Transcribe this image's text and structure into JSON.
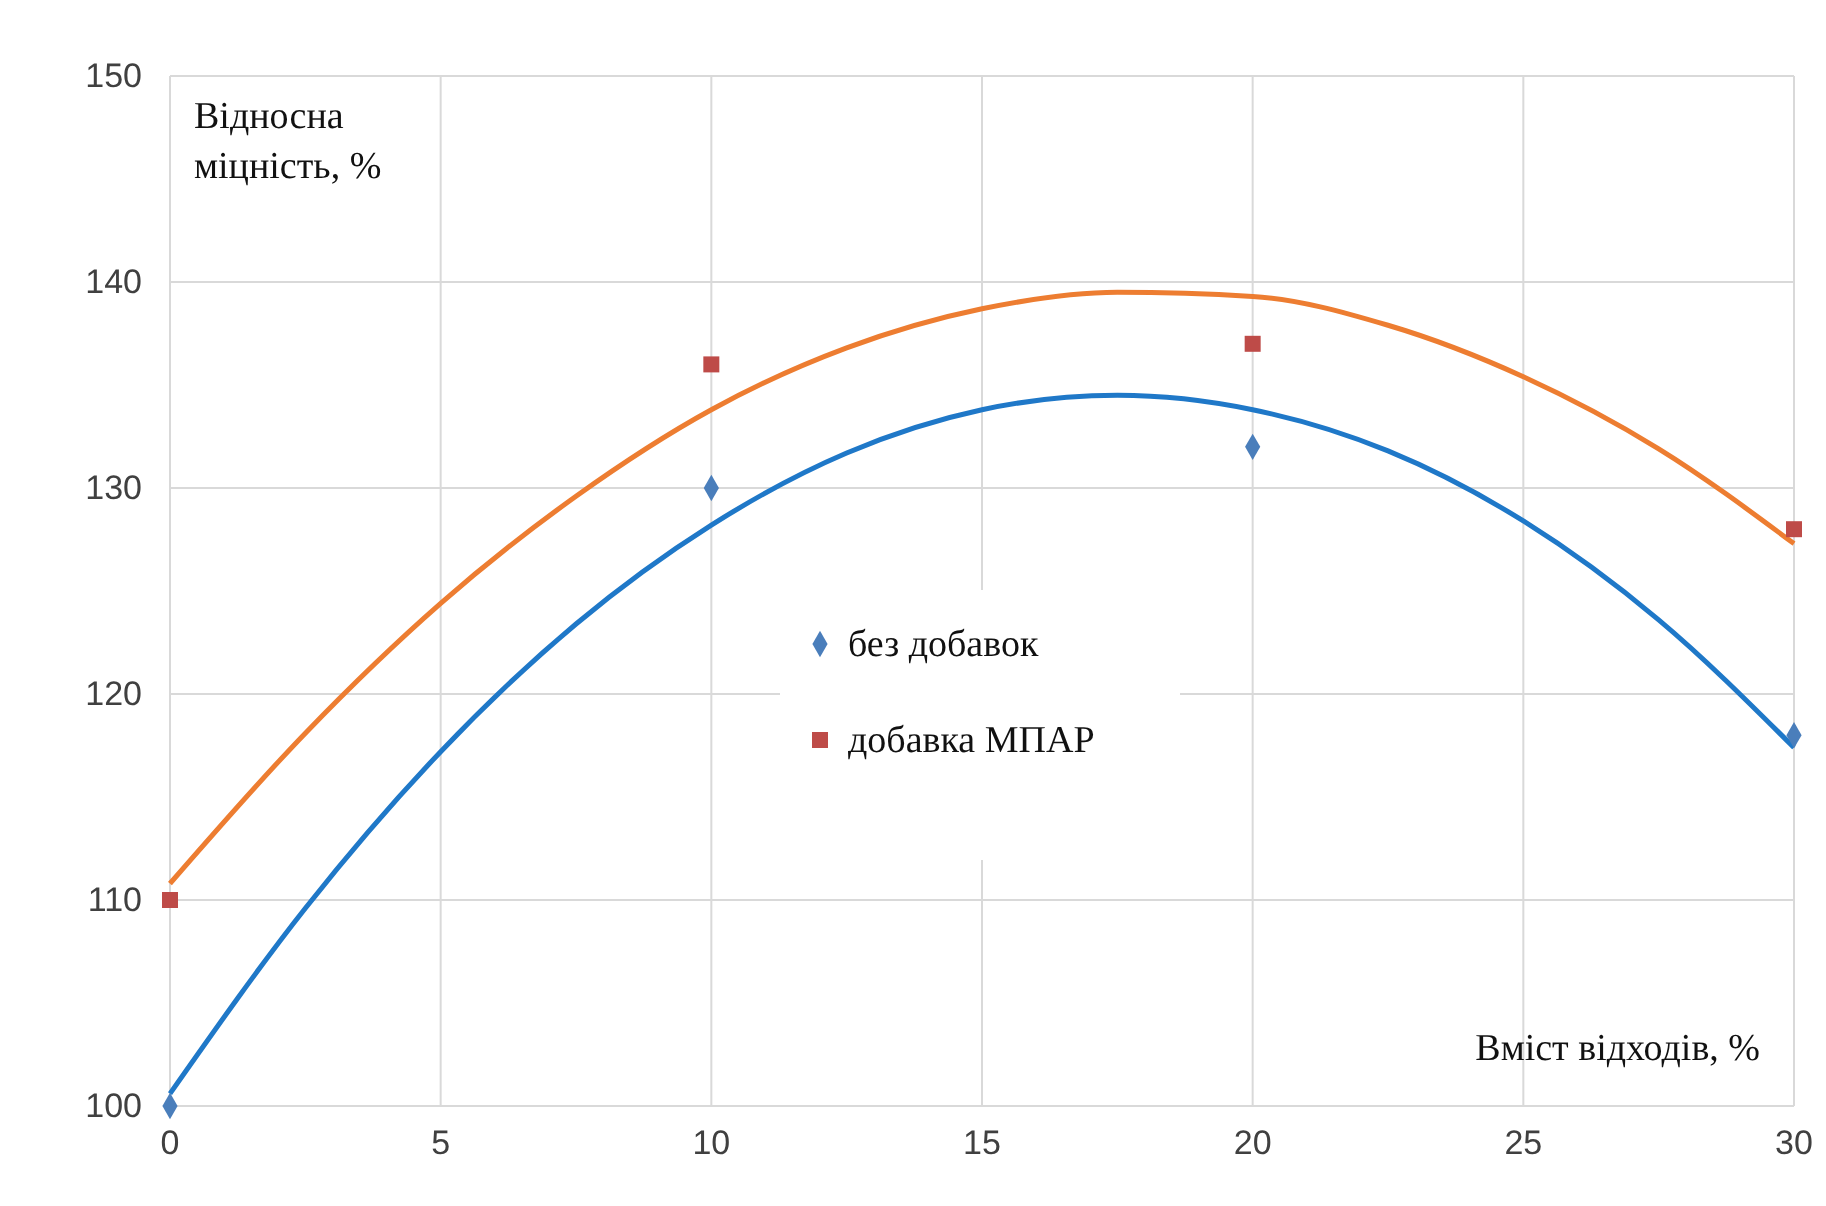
{
  "chart_data": {
    "type": "scatter",
    "xlabel": "Вміст відходів, %",
    "ylabel": "Відносна міцність, %",
    "x": [
      0,
      10,
      20,
      30
    ],
    "series": [
      {
        "name": "без добавок",
        "marker": "diamond",
        "color": "#4a7ebb",
        "values": [
          100,
          130,
          132,
          118
        ]
      },
      {
        "name": "добавка МПАР",
        "marker": "square",
        "color": "#be4b48",
        "values": [
          110,
          136,
          137,
          128
        ]
      },
      {
        "type": "line",
        "marker": "none",
        "color": "#1f78c8",
        "x": [
          0,
          2.5,
          5,
          7.5,
          10,
          12.5,
          15,
          17.5,
          20,
          22.5,
          25,
          27.5,
          30
        ],
        "values": [
          100.6,
          109.6,
          117.2,
          123.4,
          128.2,
          131.7,
          133.8,
          134.5,
          133.8,
          131.8,
          128.4,
          123.6,
          117.4
        ]
      },
      {
        "type": "line",
        "marker": "none",
        "color": "#ed7d31",
        "x": [
          0,
          2.5,
          5,
          7.5,
          10,
          12.5,
          15,
          17.5,
          20,
          22.5,
          25,
          27.5,
          30
        ],
        "values": [
          110.8,
          118.1,
          124.4,
          129.6,
          133.8,
          136.8,
          138.7,
          139.5,
          139.3,
          137.9,
          135.4,
          131.9,
          127.3
        ]
      }
    ],
    "xlim": [
      0,
      30
    ],
    "xticks": [
      0,
      5,
      10,
      15,
      20,
      25,
      30
    ],
    "ylim": [
      100,
      150
    ],
    "yticks": [
      100,
      110,
      120,
      130,
      140,
      150
    ],
    "grid": true,
    "legend": "center",
    "line_style": "solid"
  }
}
